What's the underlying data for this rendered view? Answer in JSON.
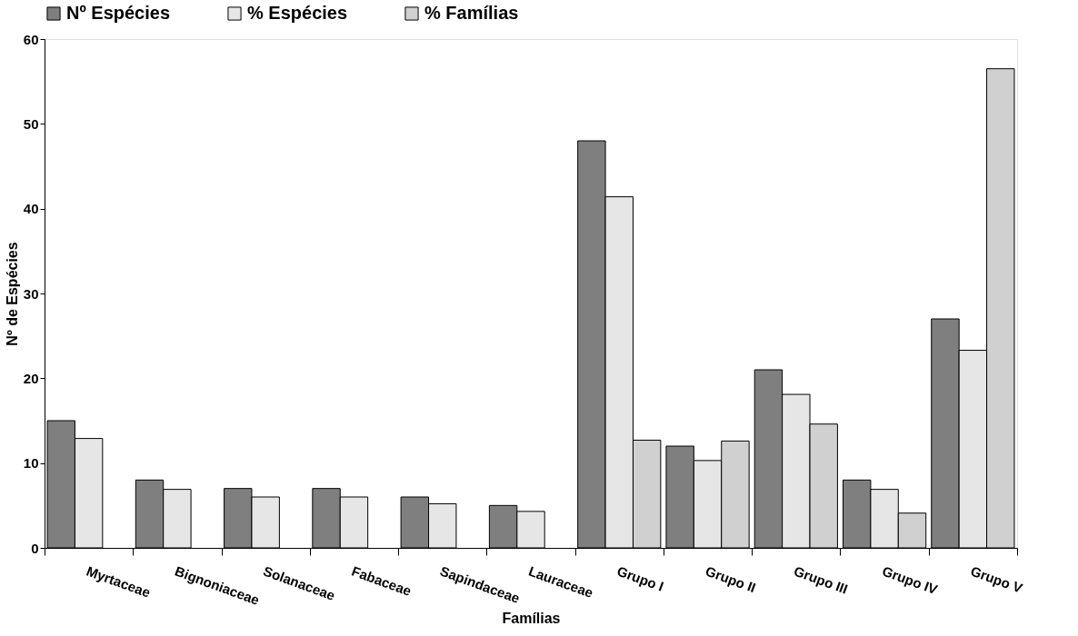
{
  "chart_data": {
    "type": "bar",
    "xlabel": "Famílias",
    "ylabel": "Nº de Espécies",
    "categories": [
      "Myrtaceae",
      "Bignoniaceae",
      "Solanaceae",
      "Fabaceae",
      "Sapindaceae",
      "Lauraceae",
      "Grupo I",
      "Grupo II",
      "Grupo III",
      "Grupo IV",
      "Grupo V"
    ],
    "series": [
      {
        "name": "Nº Espécies",
        "color": "#7f7f7f",
        "values": [
          15,
          8,
          7,
          7,
          6,
          5,
          48,
          12,
          21,
          8,
          27
        ]
      },
      {
        "name": "% Espécies",
        "color": "#e6e6e6",
        "values": [
          12.9,
          6.9,
          6,
          6,
          5.2,
          4.3,
          41.4,
          10.3,
          18.1,
          6.9,
          23.3
        ]
      },
      {
        "name": "% Famílias",
        "color": "#d0d0d0",
        "values": [
          null,
          null,
          null,
          null,
          null,
          null,
          12.7,
          12.6,
          14.6,
          4.1,
          56.5
        ]
      }
    ],
    "ylim": [
      0,
      60
    ],
    "yticks": [
      0,
      10,
      20,
      30,
      40,
      50,
      60
    ],
    "grid": false,
    "legend": "top"
  }
}
